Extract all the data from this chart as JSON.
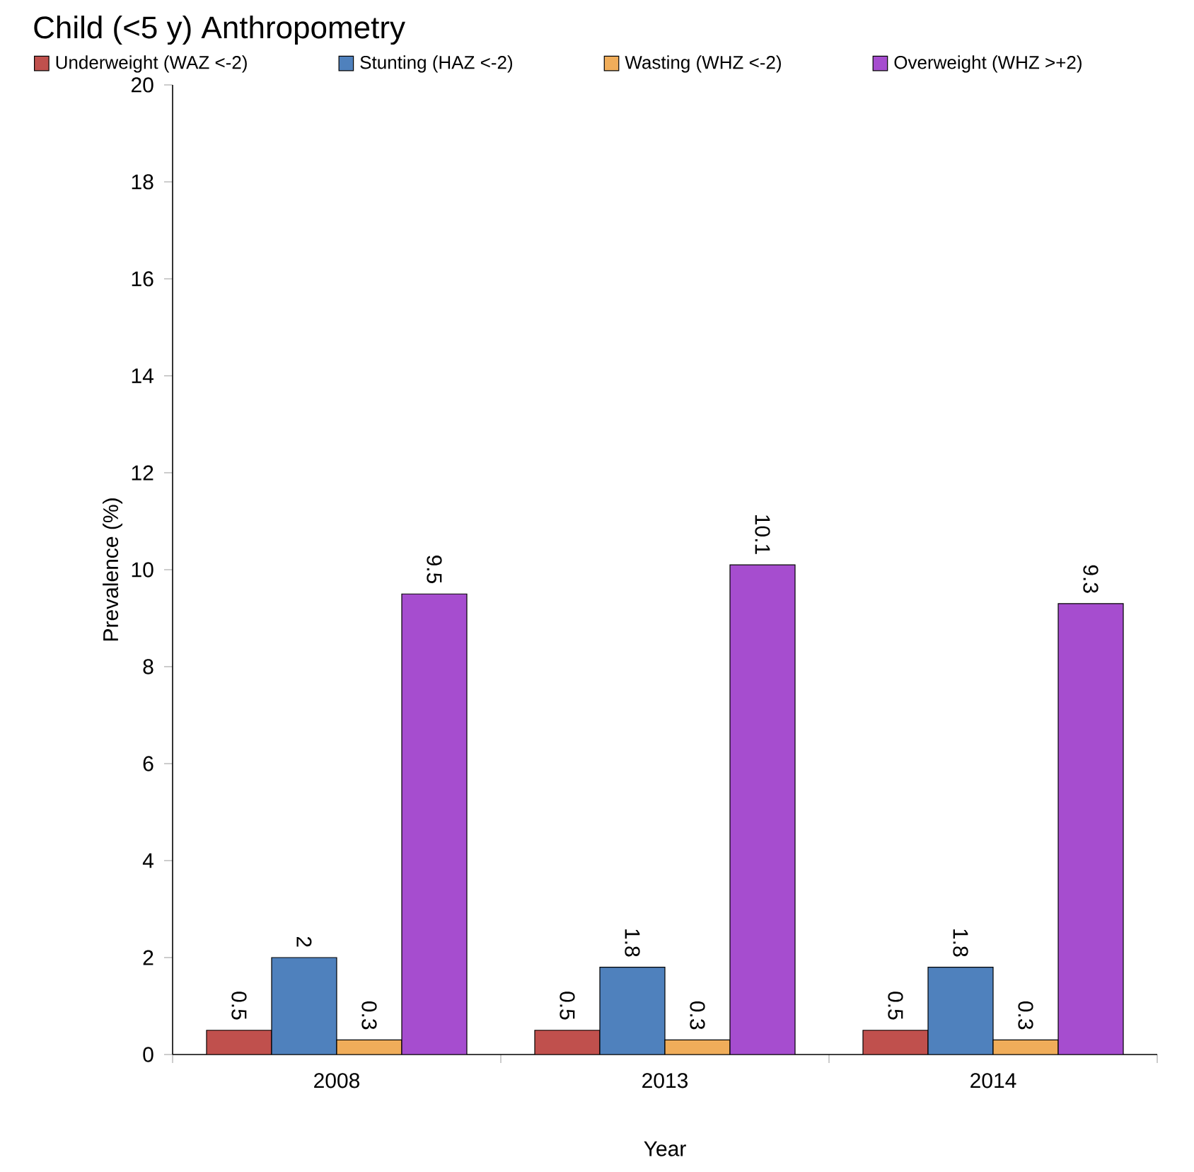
{
  "chart_data": {
    "type": "bar",
    "title": "Child (<5 y) Anthropometry",
    "xlabel": "Year",
    "ylabel": "Prevalence (%)",
    "categories": [
      "2008",
      "2013",
      "2014"
    ],
    "series": [
      {
        "name": "Underweight (WAZ <-2)",
        "color": "#c0504d",
        "values": [
          0.5,
          0.5,
          0.5
        ]
      },
      {
        "name": "Stunting (HAZ <-2)",
        "color": "#4f81bd",
        "values": [
          2,
          1.8,
          1.8
        ]
      },
      {
        "name": "Wasting (WHZ <-2)",
        "color": "#f0ad5a",
        "values": [
          0.3,
          0.3,
          0.3
        ]
      },
      {
        "name": "Overweight (WHZ >+2)",
        "color": "#a64dcf",
        "values": [
          9.5,
          10.1,
          9.3
        ]
      }
    ],
    "ylim": [
      0,
      20
    ],
    "yticks": [
      0,
      2,
      4,
      6,
      8,
      10,
      12,
      14,
      16,
      18,
      20
    ],
    "data_labels": true,
    "legend": "top",
    "grid": false
  }
}
